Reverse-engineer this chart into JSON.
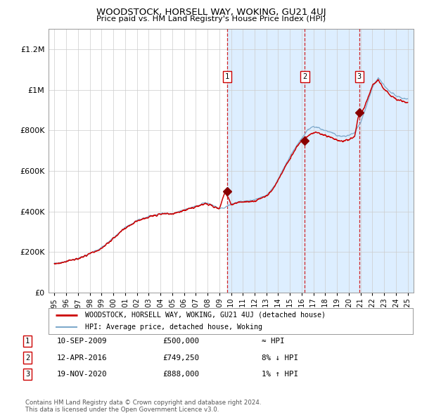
{
  "title": "WOODSTOCK, HORSELL WAY, WOKING, GU21 4UJ",
  "subtitle": "Price paid vs. HM Land Registry's House Price Index (HPI)",
  "legend_line1": "WOODSTOCK, HORSELL WAY, WOKING, GU21 4UJ (detached house)",
  "legend_line2": "HPI: Average price, detached house, Woking",
  "sale_points": [
    {
      "label": "1",
      "date_num": 2009.69,
      "price": 500000,
      "note": "≈ HPI",
      "date_str": "10-SEP-2009"
    },
    {
      "label": "2",
      "date_num": 2016.27,
      "price": 749250,
      "note": "8% ↓ HPI",
      "date_str": "12-APR-2016"
    },
    {
      "label": "3",
      "date_num": 2020.88,
      "price": 888000,
      "note": "1% ↑ HPI",
      "date_str": "19-NOV-2020"
    }
  ],
  "shaded_start": 2009.69,
  "copyright_text": "Contains HM Land Registry data © Crown copyright and database right 2024.\nThis data is licensed under the Open Government Licence v3.0.",
  "red_color": "#cc0000",
  "blue_color": "#7faacc",
  "shade_color": "#ddeeff",
  "vline_color": "#cc0000",
  "grid_color": "#cccccc",
  "background_color": "#ffffff",
  "ylim": [
    0,
    1300000
  ],
  "xlim_start": 1994.5,
  "xlim_end": 2025.5,
  "yticks": [
    0,
    200000,
    400000,
    600000,
    800000,
    1000000,
    1200000
  ],
  "ytick_labels": [
    "£0",
    "£200K",
    "£400K",
    "£600K",
    "£800K",
    "£1M",
    "£1.2M"
  ]
}
